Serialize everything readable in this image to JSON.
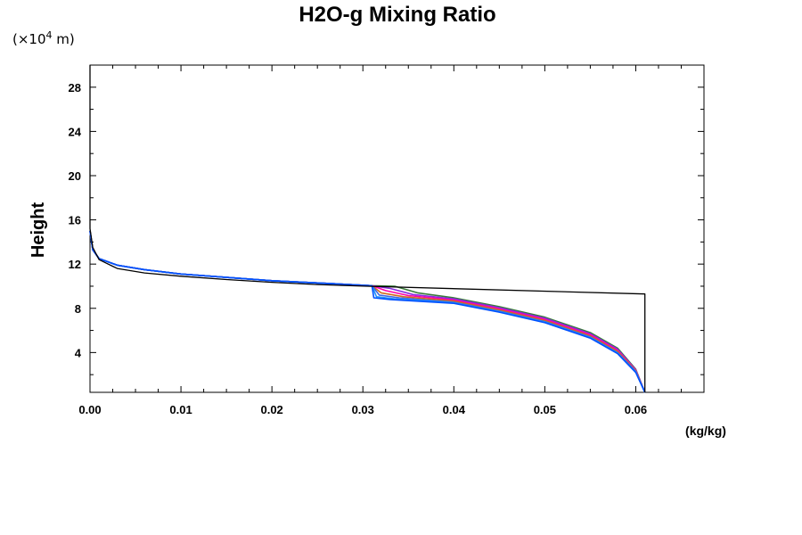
{
  "chart_data": {
    "type": "line",
    "title": "H2O-g Mixing Ratio",
    "scale_note_prefix": "(×10",
    "scale_note_exp": "4",
    "scale_note_suffix": " m)",
    "ylabel": "Height",
    "xunit": "(kg/kg)",
    "xlim": [
      0.0,
      0.0675
    ],
    "ylim": [
      0.4,
      30
    ],
    "xticks": [
      "0.00",
      "0.01",
      "0.02",
      "0.03",
      "0.04",
      "0.05",
      "0.06"
    ],
    "xtick_values": [
      0.0,
      0.01,
      0.02,
      0.03,
      0.04,
      0.05,
      0.06
    ],
    "yticks": [
      "4",
      "8",
      "12",
      "16",
      "20",
      "24",
      "28"
    ],
    "ytick_values": [
      4,
      8,
      12,
      16,
      20,
      24,
      28
    ],
    "grid": false,
    "colors": [
      "#000000",
      "#3a7a3a",
      "#8a2be2",
      "#ff00aa",
      "#d2691e",
      "#4169e1",
      "#1e90ff",
      "#0050ff"
    ],
    "series": [
      {
        "color": "#000000",
        "points": [
          [
            0.0,
            30
          ],
          [
            0.0,
            15.2
          ],
          [
            0.0003,
            13.5
          ],
          [
            0.001,
            12.4
          ],
          [
            0.003,
            11.6
          ],
          [
            0.006,
            11.2
          ],
          [
            0.01,
            10.9
          ],
          [
            0.015,
            10.6
          ],
          [
            0.02,
            10.35
          ],
          [
            0.025,
            10.15
          ],
          [
            0.0305,
            10.0
          ],
          [
            0.061,
            9.3
          ],
          [
            0.061,
            0.4
          ]
        ]
      },
      {
        "color": "#3a7a3a",
        "points": [
          [
            0.0,
            15.0
          ],
          [
            0.0003,
            13.3
          ],
          [
            0.001,
            12.5
          ],
          [
            0.003,
            11.9
          ],
          [
            0.006,
            11.5
          ],
          [
            0.01,
            11.1
          ],
          [
            0.015,
            10.8
          ],
          [
            0.02,
            10.5
          ],
          [
            0.025,
            10.3
          ],
          [
            0.031,
            10.05
          ],
          [
            0.0335,
            10.0
          ],
          [
            0.036,
            9.4
          ],
          [
            0.04,
            8.95
          ],
          [
            0.045,
            8.15
          ],
          [
            0.05,
            7.2
          ],
          [
            0.055,
            5.8
          ],
          [
            0.058,
            4.4
          ],
          [
            0.06,
            2.5
          ],
          [
            0.061,
            0.4
          ]
        ]
      },
      {
        "color": "#8a2be2",
        "points": [
          [
            0.0,
            15.0
          ],
          [
            0.0003,
            13.3
          ],
          [
            0.001,
            12.5
          ],
          [
            0.003,
            11.9
          ],
          [
            0.006,
            11.5
          ],
          [
            0.01,
            11.1
          ],
          [
            0.015,
            10.8
          ],
          [
            0.02,
            10.5
          ],
          [
            0.025,
            10.3
          ],
          [
            0.031,
            10.05
          ],
          [
            0.033,
            9.8
          ],
          [
            0.0355,
            9.25
          ],
          [
            0.04,
            8.85
          ],
          [
            0.045,
            8.05
          ],
          [
            0.05,
            7.1
          ],
          [
            0.055,
            5.7
          ],
          [
            0.058,
            4.3
          ],
          [
            0.06,
            2.45
          ],
          [
            0.061,
            0.4
          ]
        ]
      },
      {
        "color": "#ff00aa",
        "points": [
          [
            0.0,
            15.0
          ],
          [
            0.0003,
            13.3
          ],
          [
            0.001,
            12.5
          ],
          [
            0.003,
            11.9
          ],
          [
            0.006,
            11.5
          ],
          [
            0.01,
            11.1
          ],
          [
            0.015,
            10.8
          ],
          [
            0.02,
            10.5
          ],
          [
            0.025,
            10.3
          ],
          [
            0.031,
            10.05
          ],
          [
            0.0325,
            9.6
          ],
          [
            0.035,
            9.15
          ],
          [
            0.04,
            8.75
          ],
          [
            0.045,
            7.95
          ],
          [
            0.05,
            7.0
          ],
          [
            0.055,
            5.6
          ],
          [
            0.058,
            4.2
          ],
          [
            0.06,
            2.4
          ],
          [
            0.061,
            0.4
          ]
        ]
      },
      {
        "color": "#d2691e",
        "points": [
          [
            0.0,
            15.0
          ],
          [
            0.0003,
            13.3
          ],
          [
            0.001,
            12.5
          ],
          [
            0.003,
            11.9
          ],
          [
            0.006,
            11.5
          ],
          [
            0.01,
            11.1
          ],
          [
            0.015,
            10.8
          ],
          [
            0.02,
            10.5
          ],
          [
            0.025,
            10.3
          ],
          [
            0.031,
            10.05
          ],
          [
            0.032,
            9.4
          ],
          [
            0.0345,
            9.05
          ],
          [
            0.04,
            8.65
          ],
          [
            0.045,
            7.85
          ],
          [
            0.05,
            6.9
          ],
          [
            0.055,
            5.5
          ],
          [
            0.058,
            4.1
          ],
          [
            0.06,
            2.35
          ],
          [
            0.061,
            0.4
          ]
        ]
      },
      {
        "color": "#4169e1",
        "points": [
          [
            0.0,
            15.0
          ],
          [
            0.0003,
            13.3
          ],
          [
            0.001,
            12.5
          ],
          [
            0.003,
            11.9
          ],
          [
            0.006,
            11.5
          ],
          [
            0.01,
            11.1
          ],
          [
            0.015,
            10.8
          ],
          [
            0.02,
            10.5
          ],
          [
            0.025,
            10.3
          ],
          [
            0.031,
            10.05
          ],
          [
            0.0318,
            9.2
          ],
          [
            0.034,
            8.95
          ],
          [
            0.04,
            8.55
          ],
          [
            0.045,
            7.75
          ],
          [
            0.05,
            6.8
          ],
          [
            0.055,
            5.4
          ],
          [
            0.058,
            4.0
          ],
          [
            0.06,
            2.3
          ],
          [
            0.061,
            0.4
          ]
        ]
      },
      {
        "color": "#1e90ff",
        "points": [
          [
            0.0,
            15.0
          ],
          [
            0.0003,
            13.3
          ],
          [
            0.001,
            12.5
          ],
          [
            0.003,
            11.9
          ],
          [
            0.006,
            11.5
          ],
          [
            0.01,
            11.1
          ],
          [
            0.015,
            10.8
          ],
          [
            0.02,
            10.5
          ],
          [
            0.025,
            10.3
          ],
          [
            0.031,
            10.05
          ],
          [
            0.0315,
            9.05
          ],
          [
            0.0335,
            8.85
          ],
          [
            0.04,
            8.5
          ],
          [
            0.045,
            7.7
          ],
          [
            0.05,
            6.75
          ],
          [
            0.055,
            5.35
          ],
          [
            0.058,
            3.95
          ],
          [
            0.06,
            2.25
          ],
          [
            0.061,
            0.4
          ]
        ]
      },
      {
        "color": "#0050ff",
        "points": [
          [
            0.0,
            15.0
          ],
          [
            0.0003,
            13.3
          ],
          [
            0.001,
            12.5
          ],
          [
            0.003,
            11.9
          ],
          [
            0.006,
            11.5
          ],
          [
            0.01,
            11.1
          ],
          [
            0.015,
            10.8
          ],
          [
            0.02,
            10.5
          ],
          [
            0.025,
            10.3
          ],
          [
            0.031,
            10.05
          ],
          [
            0.0312,
            8.95
          ],
          [
            0.033,
            8.8
          ],
          [
            0.04,
            8.45
          ],
          [
            0.045,
            7.65
          ],
          [
            0.05,
            6.7
          ],
          [
            0.055,
            5.3
          ],
          [
            0.058,
            3.9
          ],
          [
            0.06,
            2.2
          ],
          [
            0.061,
            0.4
          ]
        ]
      }
    ]
  }
}
